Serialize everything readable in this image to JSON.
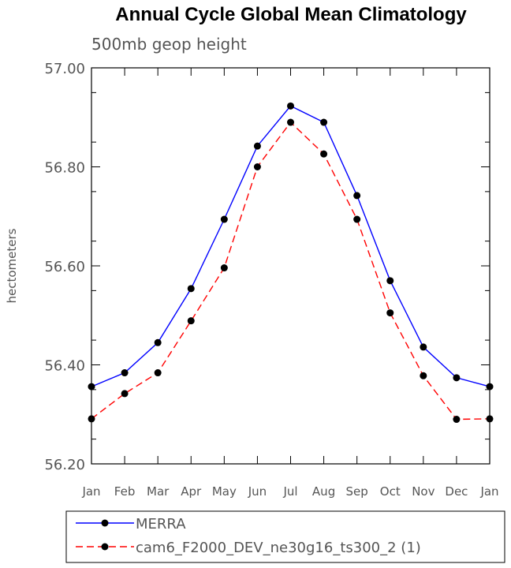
{
  "chart_data": {
    "type": "line",
    "title": "Annual Cycle Global Mean Climatology",
    "subtitle": "500mb geop height",
    "ylabel": "hectometers",
    "xlabel": "",
    "categories": [
      "Jan",
      "Feb",
      "Mar",
      "Apr",
      "May",
      "Jun",
      "Jul",
      "Aug",
      "Sep",
      "Oct",
      "Nov",
      "Dec",
      "Jan"
    ],
    "ylim": [
      56.2,
      57.0
    ],
    "yticks": [
      "56.20",
      "56.40",
      "56.60",
      "56.80",
      "57.00"
    ],
    "grid": false,
    "legend_position": "bottom",
    "series": [
      {
        "name": "MERRA",
        "color": "#0000ff",
        "line_style": "solid",
        "values": [
          56.356,
          56.384,
          56.445,
          56.554,
          56.694,
          56.842,
          56.923,
          56.89,
          56.742,
          56.57,
          56.436,
          56.374,
          56.356
        ]
      },
      {
        "name": "cam6_F2000_DEV_ne30g16_ts300_2 (1)",
        "color": "#ff0000",
        "line_style": "dashed",
        "values": [
          56.291,
          56.342,
          56.384,
          56.489,
          56.596,
          56.8,
          56.89,
          56.826,
          56.694,
          56.505,
          56.378,
          56.29,
          56.291
        ]
      }
    ]
  }
}
